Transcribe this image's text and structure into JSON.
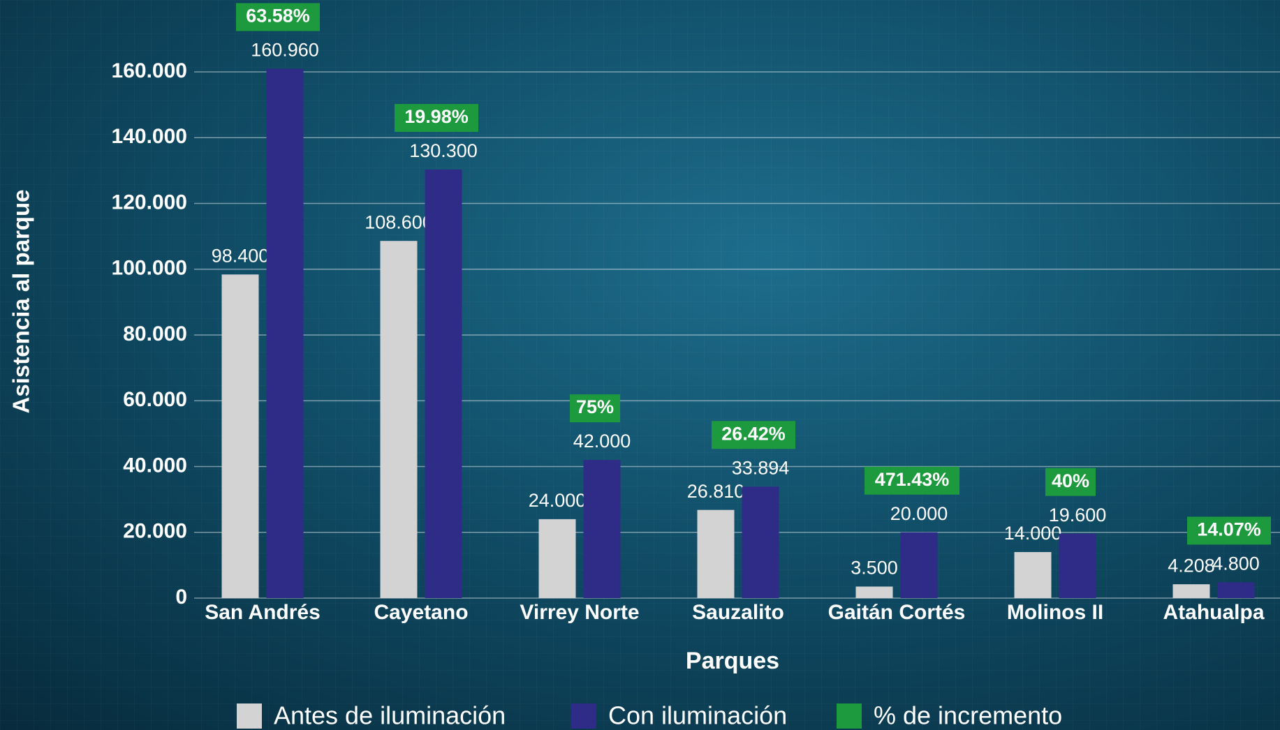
{
  "chart_data": {
    "type": "bar",
    "y_label": "Asistencia al parque",
    "x_label": "Parques",
    "categories": [
      "San Andrés",
      "Cayetano",
      "Virrey Norte",
      "Sauzalito",
      "Gaitán Cortés",
      "Molinos II",
      "Atahualpa"
    ],
    "series": [
      {
        "name": "Antes de iluminación",
        "color": "#d3d3d3",
        "values": [
          98400,
          108600,
          24000,
          26810,
          3500,
          14000,
          4208
        ],
        "value_labels": [
          "98.400",
          "108.600",
          "24.000",
          "26.810",
          "3.500",
          "14.000",
          "4.208"
        ]
      },
      {
        "name": "Con iluminación",
        "color": "#2f2c88",
        "values": [
          160960,
          130300,
          42000,
          33894,
          20000,
          19600,
          4800
        ],
        "value_labels": [
          "160.960",
          "130.300",
          "42.000",
          "33.894",
          "20.000",
          "19.600",
          "4.800"
        ]
      },
      {
        "name": "% de incremento",
        "color": "#1d9a3e",
        "values": [
          63.58,
          19.98,
          75,
          26.42,
          471.43,
          40,
          14.07
        ],
        "value_labels": [
          "63.58%",
          "19.98%",
          "75%",
          "26.42%",
          "471.43%",
          "40%",
          "14.07%"
        ]
      }
    ],
    "ylim": [
      0,
      160000
    ],
    "yticks": [
      0,
      {
        "value": 20000,
        "label": "20.000"
      },
      {
        "value": 40000,
        "label": "40.000"
      },
      {
        "value": 60000,
        "label": "60.000"
      },
      {
        "value": 80000,
        "label": "80.000"
      },
      {
        "value": 100000,
        "label": "100.000"
      },
      {
        "value": 120000,
        "label": "120.000"
      },
      {
        "value": 140000,
        "label": "140.000"
      },
      {
        "value": 160000,
        "label": "160.000"
      }
    ],
    "grid": true
  }
}
